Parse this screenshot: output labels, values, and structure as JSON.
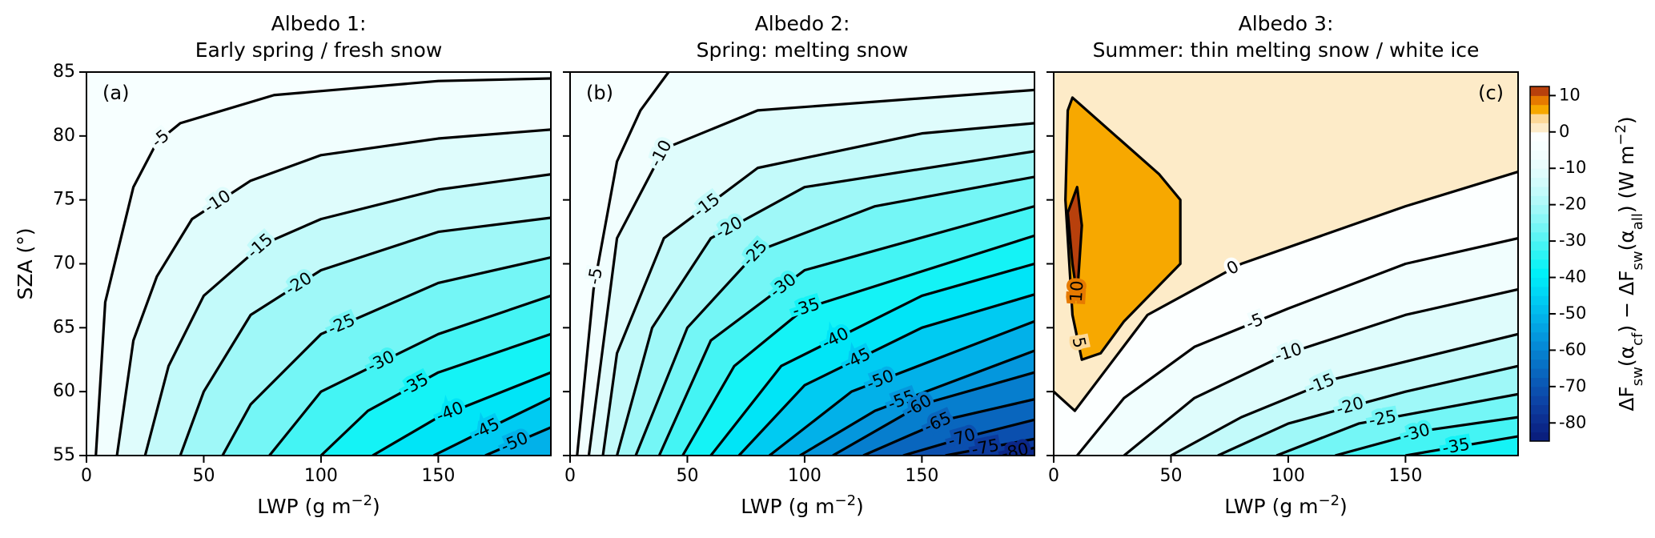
{
  "chart_data": [
    {
      "type": "contour",
      "title": [
        "Albedo 1:",
        "Early spring / fresh snow"
      ],
      "panel_label": "(a)",
      "panel_label_corner": "left",
      "xlabel": [
        {
          "text": "LWP (g m"
        },
        {
          "text": "−2",
          "sup": true
        },
        {
          "text": ")"
        }
      ],
      "ylabel": [
        {
          "text": "SZA (°)"
        }
      ],
      "ytick_labels": true,
      "xlim": [
        0,
        198
      ],
      "ylim": [
        55,
        85
      ],
      "xticks": [
        0,
        50,
        100,
        150
      ],
      "yticks": [
        55,
        60,
        65,
        70,
        75,
        80,
        85
      ],
      "contours": [
        {
          "level": -5,
          "x": [
            4,
            8,
            20,
            30,
            40,
            80,
            150,
            198
          ],
          "y": [
            55,
            67,
            76,
            79.5,
            81,
            83.2,
            84.3,
            84.5
          ]
        },
        {
          "level": -10,
          "x": [
            13,
            20,
            30,
            45,
            70,
            100,
            150,
            198
          ],
          "y": [
            55,
            64,
            69,
            73.5,
            76.5,
            78.5,
            79.8,
            80.5
          ]
        },
        {
          "level": -15,
          "x": [
            25,
            35,
            50,
            75,
            100,
            150,
            198
          ],
          "y": [
            55,
            62,
            67.5,
            71.5,
            73.5,
            75.8,
            77
          ]
        },
        {
          "level": -20,
          "x": [
            40,
            50,
            70,
            100,
            150,
            198
          ],
          "y": [
            55,
            60,
            66,
            69.5,
            72.5,
            73.6
          ]
        },
        {
          "level": -25,
          "x": [
            58,
            70,
            100,
            150,
            198
          ],
          "y": [
            55,
            59,
            64.5,
            68.5,
            70.5
          ]
        },
        {
          "level": -30,
          "x": [
            78,
            100,
            150,
            198
          ],
          "y": [
            55,
            60,
            64.5,
            67.5
          ]
        },
        {
          "level": -35,
          "x": [
            100,
            120,
            150,
            198
          ],
          "y": [
            55,
            58.5,
            61.5,
            64.5
          ]
        },
        {
          "level": -40,
          "x": [
            122,
            150,
            198
          ],
          "y": [
            55,
            58,
            61.5
          ]
        },
        {
          "level": -45,
          "x": [
            148,
            170,
            198
          ],
          "y": [
            55,
            57,
            59.5
          ]
        },
        {
          "level": -50,
          "x": [
            170,
            198
          ],
          "y": [
            55,
            57.2
          ]
        }
      ]
    },
    {
      "type": "contour",
      "title": [
        "Albedo 2:",
        "Spring: melting snow"
      ],
      "panel_label": "(b)",
      "panel_label_corner": "left",
      "xlabel": [
        {
          "text": "LWP (g m"
        },
        {
          "text": "−2",
          "sup": true
        },
        {
          "text": ")"
        }
      ],
      "ytick_labels": false,
      "xlim": [
        0,
        198
      ],
      "ylim": [
        55,
        85
      ],
      "xticks": [
        0,
        50,
        100,
        150
      ],
      "yticks": [
        55,
        60,
        65,
        70,
        75,
        80,
        85
      ],
      "contours": [
        {
          "level": -5,
          "x": [
            3,
            10,
            20,
            30,
            42
          ],
          "y": [
            55,
            68,
            78,
            82,
            85
          ]
        },
        {
          "level": -10,
          "x": [
            8,
            20,
            40,
            80,
            198
          ],
          "y": [
            55,
            72,
            79,
            82,
            83.6
          ]
        },
        {
          "level": -15,
          "x": [
            14,
            20,
            40,
            80,
            150,
            198
          ],
          "y": [
            55,
            63,
            72,
            77.5,
            80.2,
            81
          ]
        },
        {
          "level": -20,
          "x": [
            20,
            35,
            60,
            100,
            198
          ],
          "y": [
            55,
            65,
            72,
            76,
            78.8
          ]
        },
        {
          "level": -25,
          "x": [
            28,
            50,
            80,
            130,
            198
          ],
          "y": [
            55,
            65,
            71,
            74.5,
            76.8
          ]
        },
        {
          "level": -30,
          "x": [
            38,
            60,
            100,
            198
          ],
          "y": [
            55,
            64,
            69.5,
            74.5
          ]
        },
        {
          "level": -35,
          "x": [
            48,
            70,
            100,
            198
          ],
          "y": [
            55,
            62,
            66.5,
            72.2
          ]
        },
        {
          "level": -40,
          "x": [
            60,
            90,
            150,
            198
          ],
          "y": [
            55,
            62,
            67.5,
            70
          ]
        },
        {
          "level": -45,
          "x": [
            72,
            100,
            150,
            198
          ],
          "y": [
            55,
            60.5,
            65,
            67.6
          ]
        },
        {
          "level": -50,
          "x": [
            85,
            120,
            198
          ],
          "y": [
            55,
            60,
            65.5
          ]
        },
        {
          "level": -55,
          "x": [
            98,
            130,
            198
          ],
          "y": [
            55,
            58.5,
            63.2
          ]
        },
        {
          "level": -60,
          "x": [
            112,
            150,
            198
          ],
          "y": [
            55,
            59,
            61.5
          ]
        },
        {
          "level": -65,
          "x": [
            125,
            160,
            198
          ],
          "y": [
            55,
            57.8,
            59.4
          ]
        },
        {
          "level": -70,
          "x": [
            142,
            170,
            198
          ],
          "y": [
            55,
            56.5,
            57.8
          ]
        },
        {
          "level": -75,
          "x": [
            160,
            198
          ],
          "y": [
            55,
            56.3
          ]
        },
        {
          "level": -80,
          "x": [
            183,
            198
          ],
          "y": [
            55,
            55.6
          ]
        }
      ]
    },
    {
      "type": "contour",
      "title": [
        "Albedo 3:",
        "Summer: thin melting snow / white ice"
      ],
      "panel_label": "(c)",
      "panel_label_corner": "right",
      "xlabel": [
        {
          "text": "LWP (g m"
        },
        {
          "text": "−2",
          "sup": true
        },
        {
          "text": ")"
        }
      ],
      "ytick_labels": false,
      "xlim": [
        0,
        198
      ],
      "ylim": [
        55,
        85
      ],
      "xticks": [
        0,
        50,
        100,
        150
      ],
      "yticks": [
        55,
        60,
        65,
        70,
        75,
        80,
        85
      ],
      "contours": [
        {
          "level": 0,
          "x": [
            0,
            9,
            40,
            80,
            150,
            198
          ],
          "y": [
            60,
            58.5,
            66,
            70,
            74.5,
            77.2
          ]
        },
        {
          "level": -5,
          "x": [
            10,
            30,
            60,
            100,
            150,
            198
          ],
          "y": [
            55,
            59.5,
            63.5,
            66.5,
            70,
            72
          ]
        },
        {
          "level": -10,
          "x": [
            30,
            60,
            100,
            150,
            198
          ],
          "y": [
            55,
            59.5,
            63,
            66,
            68
          ]
        },
        {
          "level": -15,
          "x": [
            50,
            80,
            120,
            198
          ],
          "y": [
            55,
            58,
            61,
            64.5
          ]
        },
        {
          "level": -20,
          "x": [
            70,
            100,
            150,
            198
          ],
          "y": [
            55,
            57.5,
            60,
            62
          ]
        },
        {
          "level": -25,
          "x": [
            95,
            130,
            198
          ],
          "y": [
            55,
            57.5,
            59.8
          ]
        },
        {
          "level": -30,
          "x": [
            120,
            160,
            198
          ],
          "y": [
            55,
            57,
            58
          ]
        },
        {
          "level": -35,
          "x": [
            150,
            198
          ],
          "y": [
            55,
            56.5
          ]
        },
        {
          "level": 5,
          "closed": true,
          "x": [
            8,
            45,
            54,
            54,
            30,
            20,
            12,
            8,
            5,
            6
          ],
          "y": [
            83,
            77,
            75,
            70,
            65.5,
            63,
            62.5,
            66,
            75,
            82
          ]
        },
        {
          "level": 10,
          "closed": true,
          "x": [
            6,
            10,
            12,
            10,
            8
          ],
          "y": [
            74,
            76,
            73,
            67.5,
            70
          ]
        }
      ]
    },
    {
      "type": "colorbar",
      "lim": [
        -85,
        12.5
      ],
      "ticks": [
        10,
        0,
        -10,
        -20,
        -30,
        -40,
        -50,
        -60,
        -70,
        -80
      ],
      "label": [
        {
          "text": "ΔF"
        },
        {
          "text": "sw",
          "sub": true
        },
        {
          "text": "(α"
        },
        {
          "text": "cf",
          "sub": true
        },
        {
          "text": ") − ΔF"
        },
        {
          "text": "sw",
          "sub": true
        },
        {
          "text": "(α"
        },
        {
          "text": "all",
          "sub": true
        },
        {
          "text": ") (W m"
        },
        {
          "text": "−2",
          "sup": true
        },
        {
          "text": ")"
        }
      ],
      "colors": [
        "#0a1f7e",
        "#0b2788",
        "#0c3092",
        "#0c3a9c",
        "#0c44a6",
        "#0b4fae",
        "#0a5ab6",
        "#0966be",
        "#0772c6",
        "#067ece",
        "#058ad6",
        "#0497dd",
        "#03a4e3",
        "#02b1e9",
        "#01beee",
        "#00cbf2",
        "#00d8f5",
        "#00e5f7",
        "#00f0f8",
        "#14f3f6",
        "#2cf4f4",
        "#44f4f4",
        "#5cf5f5",
        "#74f6f6",
        "#8af7f7",
        "#9ff8f8",
        "#b2f9f9",
        "#c3fafa",
        "#d2fbfb",
        "#dffcfc",
        "#e9fdfd",
        "#f1fefe",
        "#f7ffff",
        "#fcffff",
        "#fdebc8",
        "#fcd898",
        "#f7a800",
        "#e67a00",
        "#b8400c"
      ]
    }
  ]
}
